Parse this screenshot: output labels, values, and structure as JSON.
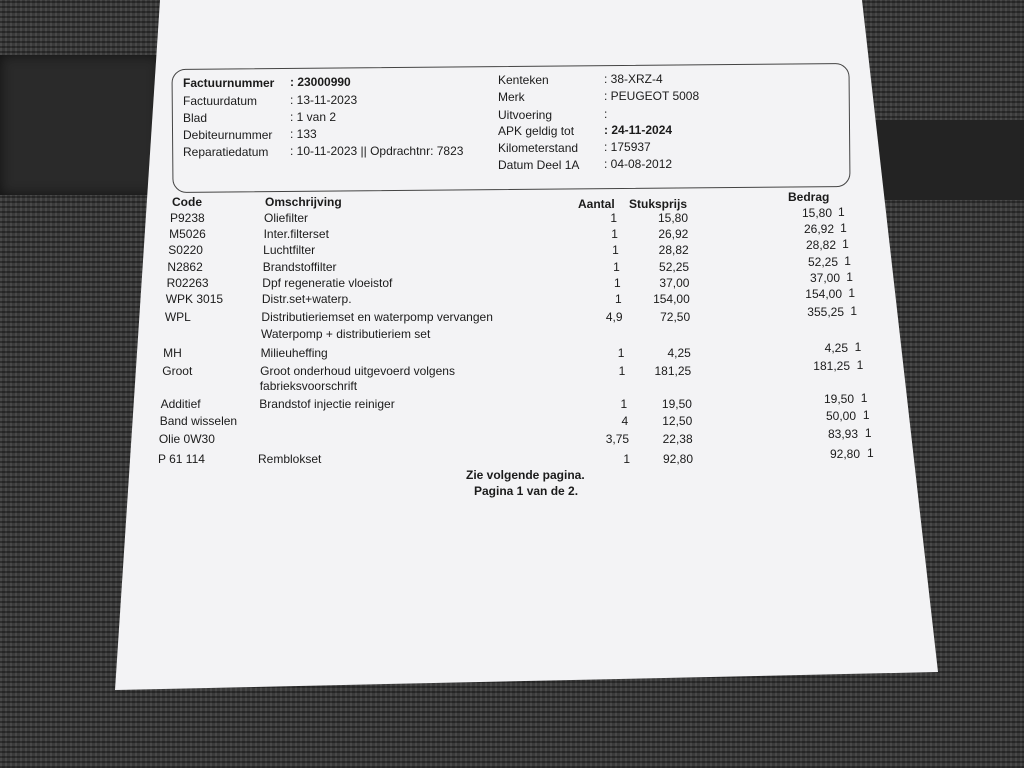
{
  "header": {
    "left": [
      {
        "label": "Factuurnummer",
        "value": ": 23000990",
        "bold": true
      },
      {
        "label": "Factuurdatum",
        "value": ": 13-11-2023"
      },
      {
        "label": "Blad",
        "value": ": 1 van 2"
      },
      {
        "label": "Debiteurnummer",
        "value": ": 133"
      },
      {
        "label": "Reparatiedatum",
        "value": ": 10-11-2023 || Opdrachtnr: 7823"
      }
    ],
    "right": [
      {
        "label": "Kenteken",
        "value": ": 38-XRZ-4"
      },
      {
        "label": "Merk",
        "value": ": PEUGEOT 5008"
      },
      {
        "label": "Uitvoering",
        "value": ":"
      },
      {
        "label": "APK geldig tot",
        "value": ": 24-11-2024",
        "bold_value": true
      },
      {
        "label": "Kilometerstand",
        "value": ": 175937"
      },
      {
        "label": "Datum Deel 1A",
        "value": ": 04-08-2012"
      }
    ]
  },
  "table": {
    "columns": {
      "code": "Code",
      "description": "Omschrijving",
      "quantity": "Aantal",
      "unit_price": "Stuksprijs",
      "amount": "Bedrag"
    },
    "rows": [
      {
        "code": "P9238",
        "description": "Oliefilter",
        "quantity": "1",
        "unit_price": "15,80",
        "amount": "15,80",
        "flag": "1"
      },
      {
        "code": "M5026",
        "description": "Inter.filterset",
        "quantity": "1",
        "unit_price": "26,92",
        "amount": "26,92",
        "flag": "1"
      },
      {
        "code": "S0220",
        "description": "Luchtfilter",
        "quantity": "1",
        "unit_price": "28,82",
        "amount": "28,82",
        "flag": "1"
      },
      {
        "code": "N2862",
        "description": "Brandstoffilter",
        "quantity": "1",
        "unit_price": "52,25",
        "amount": "52,25",
        "flag": "1"
      },
      {
        "code": "R02263",
        "description": "Dpf regeneratie vloeistof",
        "quantity": "1",
        "unit_price": "37,00",
        "amount": "37,00",
        "flag": "1"
      },
      {
        "code": "WPK 3015",
        "description": "Distr.set+waterp.",
        "quantity": "1",
        "unit_price": "154,00",
        "amount": "154,00",
        "flag": "1"
      },
      {
        "code": "WPL",
        "description": "Distributieriemset en waterpomp vervangen",
        "quantity": "4,9",
        "unit_price": "72,50",
        "amount": "355,25",
        "flag": "1"
      },
      {
        "code": "",
        "description": "Waterpomp + distributieriem set",
        "quantity": "",
        "unit_price": "",
        "amount": "",
        "flag": ""
      },
      {
        "code": "MH",
        "description": "Milieuheffing",
        "quantity": "1",
        "unit_price": "4,25",
        "amount": "4,25",
        "flag": "1"
      },
      {
        "code": "Groot",
        "description": "Groot onderhoud uitgevoerd volgens",
        "quantity": "1",
        "unit_price": "181,25",
        "amount": "181,25",
        "flag": "1"
      },
      {
        "code": "",
        "description": "fabrieksvoorschrift",
        "quantity": "",
        "unit_price": "",
        "amount": "",
        "flag": ""
      },
      {
        "code": "Additief",
        "description": "Brandstof injectie reiniger",
        "quantity": "1",
        "unit_price": "19,50",
        "amount": "19,50",
        "flag": "1"
      },
      {
        "code": "Band wisselen",
        "description": "",
        "quantity": "4",
        "unit_price": "12,50",
        "amount": "50,00",
        "flag": "1"
      },
      {
        "code": "Olie 0W30",
        "description": "",
        "quantity": "3,75",
        "unit_price": "22,38",
        "amount": "83,93",
        "flag": "1"
      },
      {
        "code": "P 61 114",
        "description": "Remblokset",
        "quantity": "1",
        "unit_price": "92,80",
        "amount": "92,80",
        "flag": "1"
      }
    ]
  },
  "footer": {
    "next_page": "Zie volgende pagina.",
    "page_info": "Pagina 1 van de 2."
  }
}
